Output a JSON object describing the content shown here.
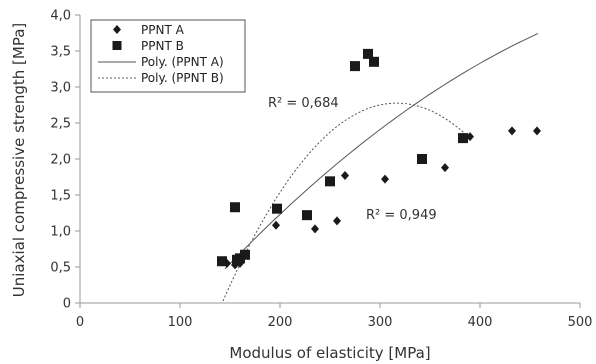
{
  "chart_data": {
    "type": "scatter",
    "xlabel": "Modulus of elasticity [MPa]",
    "ylabel": "Uniaxial compressive strength [MPa]",
    "xlim": [
      0,
      500
    ],
    "ylim": [
      0,
      4.0
    ],
    "x_ticks": [
      "0",
      "100",
      "200",
      "300",
      "400",
      "500"
    ],
    "y_ticks": [
      "0",
      "0,5",
      "1,0",
      "1,5",
      "2,0",
      "2,5",
      "3,0",
      "3,5",
      "4,0"
    ],
    "grid": false,
    "legend_position": "top-left",
    "legend": {
      "series_a": "PPNT A",
      "series_b": "PPNT B",
      "trend_a": "Poly. (PPNT A)",
      "trend_b": "Poly. (PPNT B)"
    },
    "annotations": {
      "r2_b": "R² = 0,684",
      "r2_a": "R² = 0,949"
    },
    "series": [
      {
        "name": "PPNT A",
        "marker": "diamond",
        "points": [
          {
            "x": 147,
            "y": 0.55
          },
          {
            "x": 155,
            "y": 0.53
          },
          {
            "x": 160,
            "y": 0.55
          },
          {
            "x": 196,
            "y": 1.08
          },
          {
            "x": 235,
            "y": 1.03
          },
          {
            "x": 257,
            "y": 1.14
          },
          {
            "x": 265,
            "y": 1.77
          },
          {
            "x": 305,
            "y": 1.72
          },
          {
            "x": 365,
            "y": 1.88
          },
          {
            "x": 390,
            "y": 2.31
          },
          {
            "x": 432,
            "y": 2.39
          },
          {
            "x": 457,
            "y": 2.39
          }
        ]
      },
      {
        "name": "PPNT B",
        "marker": "square",
        "points": [
          {
            "x": 142,
            "y": 0.58
          },
          {
            "x": 157,
            "y": 0.6
          },
          {
            "x": 160,
            "y": 0.62
          },
          {
            "x": 165,
            "y": 0.67
          },
          {
            "x": 155,
            "y": 1.33
          },
          {
            "x": 197,
            "y": 1.31
          },
          {
            "x": 227,
            "y": 1.22
          },
          {
            "x": 250,
            "y": 1.69
          },
          {
            "x": 275,
            "y": 3.29
          },
          {
            "x": 288,
            "y": 3.46
          },
          {
            "x": 294,
            "y": 3.35
          },
          {
            "x": 342,
            "y": 2.0
          },
          {
            "x": 383,
            "y": 2.29
          }
        ]
      }
    ],
    "trendlines": [
      {
        "series": "PPNT A",
        "style": "solid",
        "x_range": [
          145,
          458
        ],
        "coeffs": [
          -1.9,
          0.01824,
          -1.292e-05
        ]
      },
      {
        "series": "PPNT B",
        "style": "dashed",
        "x_range": [
          143,
          385
        ],
        "coeffs": [
          -6.36,
          0.0577,
          -9.11e-05
        ]
      }
    ],
    "colors": {
      "marker": "#1a1a1a",
      "trend": "#555555",
      "axis": "#999999"
    }
  }
}
